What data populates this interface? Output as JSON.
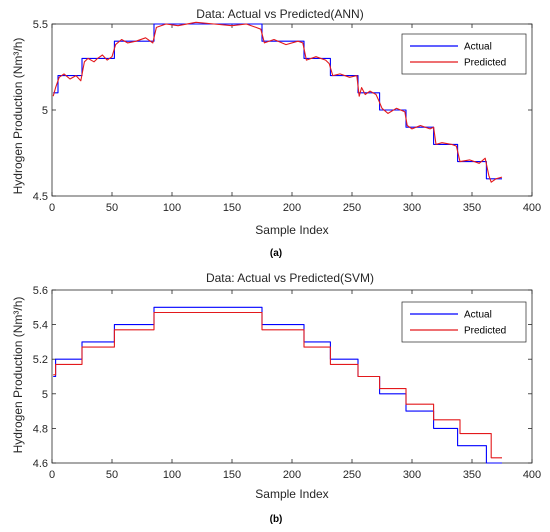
{
  "chart_data": [
    {
      "type": "line",
      "title": "Data: Actual vs Predicted(ANN)",
      "xlabel": "Sample Index",
      "ylabel": "Hydrogen Production (Nm³/h)",
      "caption": "(a)",
      "xlim": [
        0,
        400
      ],
      "ylim": [
        4.5,
        5.5
      ],
      "xticks": [
        0,
        50,
        100,
        150,
        200,
        250,
        300,
        350,
        400
      ],
      "yticks": [
        4.5,
        5,
        5.5
      ],
      "ytick_labels": [
        "4.5",
        "5",
        "5.5"
      ],
      "legend": {
        "location": "top-right",
        "entries": [
          "Actual",
          "Predicted"
        ]
      },
      "grid": false,
      "colors": {
        "Actual": "#0000ff",
        "Predicted": "#e3191c"
      },
      "series": [
        {
          "name": "Actual",
          "x": [
            1,
            5,
            5,
            25,
            25,
            52,
            52,
            85,
            85,
            175,
            175,
            210,
            210,
            232,
            232,
            255,
            255,
            273,
            273,
            295,
            295,
            318,
            318,
            338,
            338,
            362,
            362,
            375
          ],
          "y": [
            5.1,
            5.1,
            5.2,
            5.2,
            5.3,
            5.3,
            5.4,
            5.4,
            5.5,
            5.5,
            5.4,
            5.4,
            5.3,
            5.3,
            5.2,
            5.2,
            5.1,
            5.1,
            5.0,
            5.0,
            4.9,
            4.9,
            4.8,
            4.8,
            4.7,
            4.7,
            4.6,
            4.6
          ]
        },
        {
          "name": "Predicted",
          "x": [
            1,
            3,
            6,
            10,
            15,
            20,
            24,
            27,
            30,
            35,
            38,
            42,
            46,
            50,
            53,
            58,
            63,
            70,
            78,
            84,
            87,
            95,
            105,
            120,
            135,
            150,
            162,
            170,
            174,
            177,
            185,
            195,
            205,
            209,
            212,
            220,
            228,
            231,
            234,
            240,
            248,
            254,
            256,
            258,
            261,
            265,
            270,
            272,
            275,
            280,
            287,
            294,
            296,
            300,
            307,
            315,
            318,
            320,
            325,
            333,
            337,
            340,
            348,
            356,
            361,
            364,
            366,
            370,
            375
          ],
          "y": [
            5.08,
            5.13,
            5.19,
            5.21,
            5.18,
            5.2,
            5.17,
            5.28,
            5.3,
            5.28,
            5.3,
            5.32,
            5.29,
            5.31,
            5.38,
            5.41,
            5.39,
            5.4,
            5.42,
            5.39,
            5.48,
            5.5,
            5.49,
            5.51,
            5.5,
            5.49,
            5.5,
            5.48,
            5.47,
            5.39,
            5.41,
            5.38,
            5.4,
            5.39,
            5.29,
            5.31,
            5.29,
            5.27,
            5.2,
            5.21,
            5.19,
            5.2,
            5.08,
            5.13,
            5.09,
            5.11,
            5.09,
            5.06,
            5.01,
            4.98,
            5.01,
            4.99,
            4.91,
            4.89,
            4.91,
            4.89,
            4.9,
            4.8,
            4.81,
            4.8,
            4.79,
            4.7,
            4.71,
            4.69,
            4.72,
            4.62,
            4.58,
            4.6,
            4.61
          ]
        }
      ]
    },
    {
      "type": "line",
      "title": "Data: Actual vs Predicted(SVM)",
      "xlabel": "Sample Index",
      "ylabel": "Hydrogen Production (Nm³/h)",
      "caption": "(b)",
      "xlim": [
        0,
        400
      ],
      "ylim": [
        4.6,
        5.6
      ],
      "xticks": [
        0,
        50,
        100,
        150,
        200,
        250,
        300,
        350,
        400
      ],
      "yticks": [
        4.6,
        4.8,
        5,
        5.2,
        5.4,
        5.6
      ],
      "ytick_labels": [
        "4.6",
        "4.8",
        "5",
        "5.2",
        "5.4",
        "5.6"
      ],
      "legend": {
        "location": "top-right",
        "entries": [
          "Actual",
          "Predicted"
        ]
      },
      "grid": false,
      "colors": {
        "Actual": "#0000ff",
        "Predicted": "#e3191c"
      },
      "series": [
        {
          "name": "Actual",
          "x": [
            1,
            3,
            3,
            25,
            25,
            52,
            52,
            85,
            85,
            175,
            175,
            210,
            210,
            232,
            232,
            255,
            255,
            273,
            273,
            295,
            295,
            318,
            318,
            338,
            338,
            362,
            362,
            375
          ],
          "y": [
            5.1,
            5.1,
            5.2,
            5.2,
            5.3,
            5.3,
            5.4,
            5.4,
            5.5,
            5.5,
            5.4,
            5.4,
            5.3,
            5.3,
            5.2,
            5.2,
            5.1,
            5.1,
            5.0,
            5.0,
            4.9,
            4.9,
            4.8,
            4.8,
            4.7,
            4.7,
            4.6,
            4.6
          ]
        },
        {
          "name": "Predicted",
          "x": [
            1,
            3,
            3,
            25,
            25,
            52,
            52,
            85,
            85,
            175,
            175,
            210,
            210,
            232,
            232,
            255,
            255,
            273,
            273,
            295,
            295,
            318,
            318,
            340,
            340,
            366,
            366,
            375
          ],
          "y": [
            5.11,
            5.11,
            5.17,
            5.17,
            5.27,
            5.27,
            5.37,
            5.37,
            5.47,
            5.47,
            5.37,
            5.37,
            5.27,
            5.27,
            5.17,
            5.17,
            5.1,
            5.1,
            5.03,
            5.03,
            4.94,
            4.94,
            4.85,
            4.85,
            4.77,
            4.77,
            4.63,
            4.63
          ]
        }
      ]
    }
  ]
}
